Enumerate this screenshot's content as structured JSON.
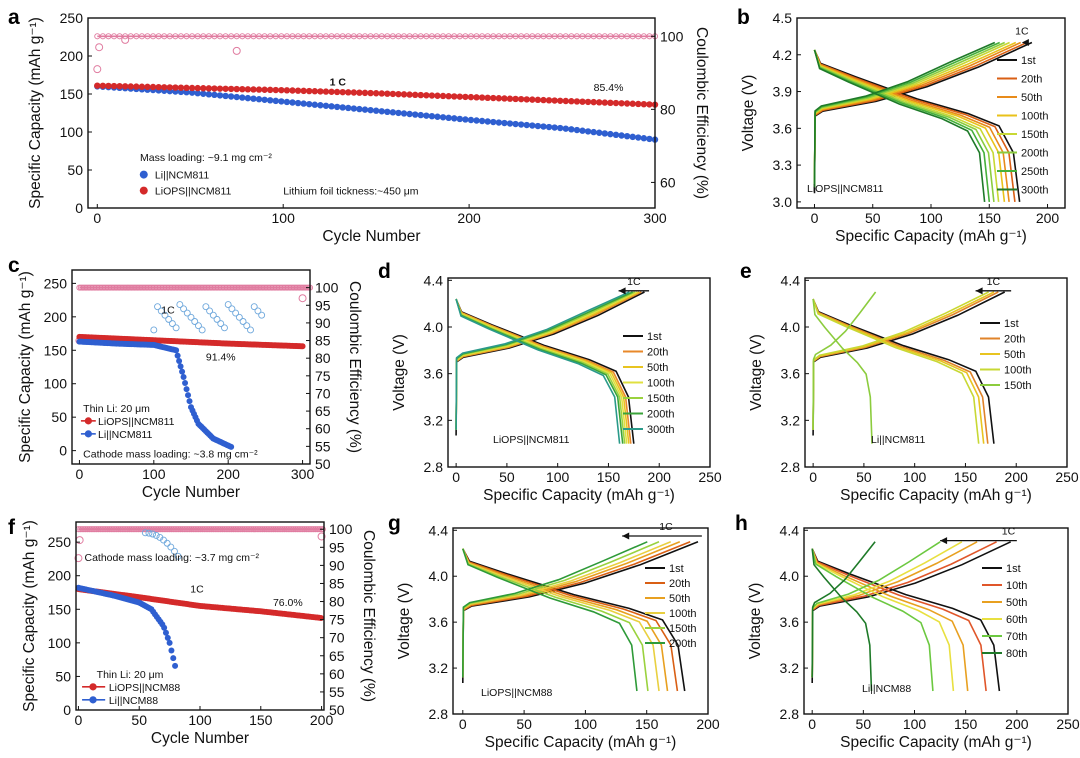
{
  "chart_data": [
    {
      "panel": "a",
      "type": "scatter",
      "xlabel": "Cycle Number",
      "ylabel": "Specific Capacity (mAh g⁻¹)",
      "y2label": "Coulombic Efficiency (%)",
      "xlim": [
        -5,
        300
      ],
      "xticks": [
        0,
        100,
        200,
        300
      ],
      "ylim": [
        0,
        250
      ],
      "yticks": [
        0,
        50,
        100,
        150,
        200,
        250
      ],
      "y2lim": [
        53,
        105
      ],
      "y2ticks": [
        60,
        80,
        100
      ],
      "annotations": {
        "rate": "1 C",
        "retention": "85.4%",
        "mass": "Mass loading: ~9.1 mg cm⁻²",
        "thickness": "Lithium foil tickness:~450 μm"
      },
      "series": [
        {
          "name": "Li||NCM811",
          "color": "#2f5fd0",
          "x": [
            0,
            50,
            100,
            150,
            200,
            250,
            300
          ],
          "values": [
            160,
            152,
            140,
            128,
            116,
            105,
            90
          ],
          "end": 300
        },
        {
          "name": "LiOPS||NCM811",
          "color": "#d42a2a",
          "x": [
            0,
            50,
            100,
            150,
            200,
            250,
            300
          ],
          "values": [
            161,
            158,
            155,
            151,
            146,
            141,
            136
          ],
          "end": 300
        }
      ],
      "ce": {
        "color": "#e07ca0",
        "value": 100,
        "outliers": [
          [
            0,
            91
          ],
          [
            1,
            97
          ],
          [
            15,
            99
          ],
          [
            75,
            96
          ]
        ]
      }
    },
    {
      "panel": "b",
      "type": "line",
      "xlabel": "Specific Capacity (mAh g⁻¹)",
      "ylabel": "Voltage (V)",
      "xlim": [
        -15,
        215
      ],
      "xticks": [
        0,
        50,
        100,
        150,
        200
      ],
      "ylim": [
        2.95,
        4.5
      ],
      "yticks": [
        3.0,
        3.3,
        3.6,
        3.9,
        4.2,
        4.5
      ],
      "label": "LiOPS||NCM811",
      "rate": "1C",
      "legend": [
        "1st",
        "20th",
        "50th",
        "100th",
        "150th",
        "200th",
        "250th",
        "300th"
      ],
      "caps": [
        176,
        172,
        167,
        163,
        158,
        154,
        150,
        146
      ],
      "colors": [
        "#111111",
        "#d95f14",
        "#e88b1a",
        "#e9c21a",
        "#c8d834",
        "#8ccc3e",
        "#45b03a",
        "#1e7a28"
      ]
    },
    {
      "panel": "c",
      "type": "scatter",
      "xlabel": "Cycle Number",
      "ylabel": "Specific Capacity (mAh g⁻¹)",
      "y2label": "Coulombic Efficiency (%)",
      "xlim": [
        -10,
        310
      ],
      "xticks": [
        0,
        100,
        200,
        300
      ],
      "ylim": [
        -20,
        270
      ],
      "yticks": [
        0,
        50,
        100,
        150,
        200,
        250
      ],
      "y2lim": [
        50,
        105
      ],
      "y2ticks": [
        50,
        55,
        60,
        65,
        70,
        75,
        80,
        85,
        90,
        95,
        100
      ],
      "annotations": {
        "rate": "1C",
        "retention": "91.4%",
        "thin": "Thin Li: 20 μm",
        "mass": "Cathode mass loading: ~3.8 mg cm⁻²"
      },
      "series": [
        {
          "name": "LiOPS||NCM811",
          "color": "#d42a2a",
          "x": [
            0,
            100,
            200,
            300
          ],
          "values": [
            170,
            165,
            160,
            156
          ],
          "end": 300
        },
        {
          "name": "Li||NCM811",
          "color": "#2f5fd0",
          "x": [
            0,
            50,
            100,
            130,
            140,
            150,
            160,
            180,
            205
          ],
          "values": [
            163,
            160,
            158,
            150,
            110,
            65,
            40,
            18,
            5
          ],
          "end": 205
        }
      ],
      "ce": {
        "color": "#e07ca0",
        "value": 100,
        "outliers": [
          [
            0,
            85
          ],
          [
            300,
            97
          ]
        ]
      }
    },
    {
      "panel": "d",
      "type": "line",
      "xlabel": "Specific Capacity (mAh g⁻¹)",
      "ylabel": "Voltage (V)",
      "xlim": [
        -8,
        250
      ],
      "xticks": [
        0,
        50,
        100,
        150,
        200,
        250
      ],
      "ylim": [
        2.8,
        4.42
      ],
      "yticks": [
        2.8,
        3.2,
        3.6,
        4.0,
        4.4
      ],
      "label": "LiOPS||NCM811",
      "rate": "1C",
      "legend": [
        "1st",
        "20th",
        "50th",
        "100th",
        "150th",
        "200th",
        "300th"
      ],
      "caps": [
        175,
        172,
        170,
        168,
        166,
        164,
        161
      ],
      "colors": [
        "#111111",
        "#e8882a",
        "#e8c420",
        "#e0e040",
        "#9ad23e",
        "#3aa33a",
        "#2a9a8a"
      ]
    },
    {
      "panel": "e",
      "type": "line",
      "xlabel": "Specific Capacity (mAh g⁻¹)",
      "ylabel": "Voltage (V)",
      "xlim": [
        -8,
        250
      ],
      "xticks": [
        0,
        50,
        100,
        150,
        200,
        250
      ],
      "ylim": [
        2.8,
        4.42
      ],
      "yticks": [
        2.8,
        3.2,
        3.6,
        4.0,
        4.4
      ],
      "label": "Li||NCM811",
      "rate": "1C",
      "legend": [
        "1st",
        "20th",
        "50th",
        "100th",
        "150th"
      ],
      "caps": [
        178,
        172,
        168,
        163,
        58
      ],
      "colors": [
        "#111111",
        "#e0832a",
        "#e8c420",
        "#c8d834",
        "#8ccc3e"
      ]
    },
    {
      "panel": "f",
      "type": "scatter",
      "xlabel": "Cycle Number",
      "ylabel": "Specific Capacity (mAh g⁻¹)",
      "y2label": "Coulombic Efficiency (%)",
      "xlim": [
        -2,
        202
      ],
      "xticks": [
        0,
        50,
        100,
        150,
        200
      ],
      "ylim": [
        0,
        280
      ],
      "yticks": [
        0,
        50,
        100,
        150,
        200,
        250
      ],
      "y2lim": [
        50,
        102
      ],
      "y2ticks": [
        50,
        55,
        60,
        65,
        70,
        75,
        80,
        85,
        90,
        95,
        100
      ],
      "annotations": {
        "rate": "1C",
        "retention": "76.0%",
        "thin": "Thin Li: 20 μm",
        "mass": "Cathode mass loading: ~3.7 mg cm⁻²"
      },
      "series": [
        {
          "name": "LiOPS||NCM88",
          "color": "#d42a2a",
          "x": [
            0,
            50,
            100,
            150,
            200
          ],
          "values": [
            180,
            168,
            155,
            147,
            137
          ],
          "end": 200
        },
        {
          "name": "Li||NCM88",
          "color": "#2f5fd0",
          "x": [
            0,
            30,
            50,
            60,
            70,
            75,
            80
          ],
          "values": [
            182,
            170,
            160,
            150,
            125,
            100,
            62
          ],
          "end": 80
        }
      ],
      "ce": {
        "color": "#e07ca0",
        "value": 100,
        "outliers": [
          [
            0,
            92
          ],
          [
            1,
            97
          ],
          [
            200,
            98
          ]
        ]
      }
    },
    {
      "panel": "g",
      "type": "line",
      "xlabel": "Specific Capacity (mAh g⁻¹)",
      "ylabel": "Voltage (V)",
      "xlim": [
        -8,
        200
      ],
      "xticks": [
        0,
        50,
        100,
        150,
        200
      ],
      "ylim": [
        2.8,
        4.42
      ],
      "yticks": [
        2.8,
        3.2,
        3.6,
        4.0,
        4.4
      ],
      "label": "LiOPS||NCM88",
      "rate": "1C",
      "legend": [
        "1st",
        "20th",
        "50th",
        "100th",
        "150th",
        "200th"
      ],
      "caps": [
        181,
        175,
        167,
        160,
        151,
        142
      ],
      "colors": [
        "#111111",
        "#d95f14",
        "#e8a020",
        "#e9d040",
        "#9ad23e",
        "#2e9a38"
      ]
    },
    {
      "panel": "h",
      "type": "line",
      "xlabel": "Specific Capacity (mAh g⁻¹)",
      "ylabel": "Voltage (V)",
      "xlim": [
        -8,
        250
      ],
      "xticks": [
        0,
        50,
        100,
        150,
        200,
        250
      ],
      "ylim": [
        2.8,
        4.42
      ],
      "yticks": [
        2.8,
        3.2,
        3.6,
        4.0,
        4.4
      ],
      "label": "Li||NCM88",
      "rate": "1C",
      "legend": [
        "1st",
        "10th",
        "50th",
        "60th",
        "70th",
        "80th"
      ],
      "caps": [
        183,
        170,
        152,
        138,
        118,
        58
      ],
      "colors": [
        "#111111",
        "#e0562a",
        "#e8a020",
        "#e8e040",
        "#6cc840",
        "#1e7a28"
      ]
    }
  ]
}
